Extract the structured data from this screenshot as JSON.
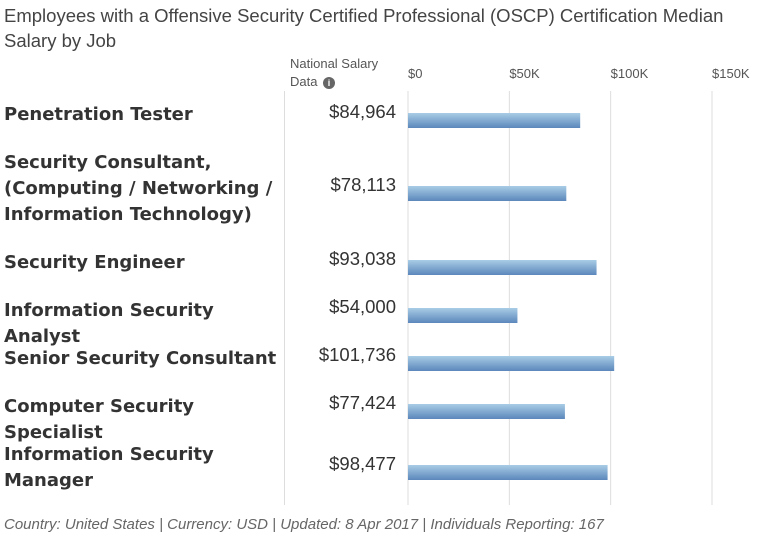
{
  "chart_data": {
    "type": "bar",
    "title": "Employees with a Offensive Security Certified Professional (OSCP) Certification Median Salary by Job",
    "column_header": "National Salary Data",
    "categories": [
      "Penetration Tester",
      "Security Consultant, (Computing / Networking / Information Technology)",
      "Security Engineer",
      "Information Security Analyst",
      "Senior Security Consultant",
      "Computer Security Specialist",
      "Information Security Manager"
    ],
    "values": [
      84964,
      78113,
      93038,
      54000,
      101736,
      77424,
      98477
    ],
    "value_labels": [
      "$84,964",
      "$78,113",
      "$93,038",
      "$54,000",
      "$101,736",
      "$77,424",
      "$98,477"
    ],
    "xticks": [
      0,
      50000,
      100000,
      150000
    ],
    "xtick_labels": [
      "$0",
      "$50K",
      "$100K",
      "$150K"
    ],
    "xlim": [
      0,
      150000
    ],
    "grid": true,
    "bar_color_top": "#a9cde6",
    "bar_color_bottom": "#5b87bb"
  },
  "footer": "Country: United States | Currency: USD | Updated: 8 Apr 2017 | Individuals Reporting: 167"
}
